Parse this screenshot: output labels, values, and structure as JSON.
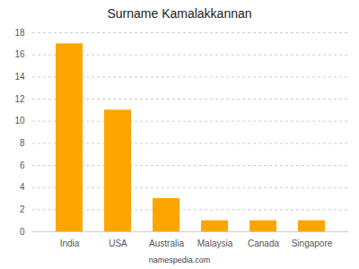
{
  "chart_data": {
    "type": "bar",
    "title": "Surname Kamalakkannan",
    "categories": [
      "India",
      "USA",
      "Australia",
      "Malaysia",
      "Canada",
      "Singapore"
    ],
    "values": [
      17,
      11,
      3,
      1,
      1,
      1
    ],
    "color": "#FFA500",
    "ylim": [
      0,
      18
    ],
    "yticks": [
      0,
      2,
      4,
      6,
      8,
      10,
      12,
      14,
      16,
      18
    ],
    "grid": true,
    "caption": "namespedia.com"
  }
}
